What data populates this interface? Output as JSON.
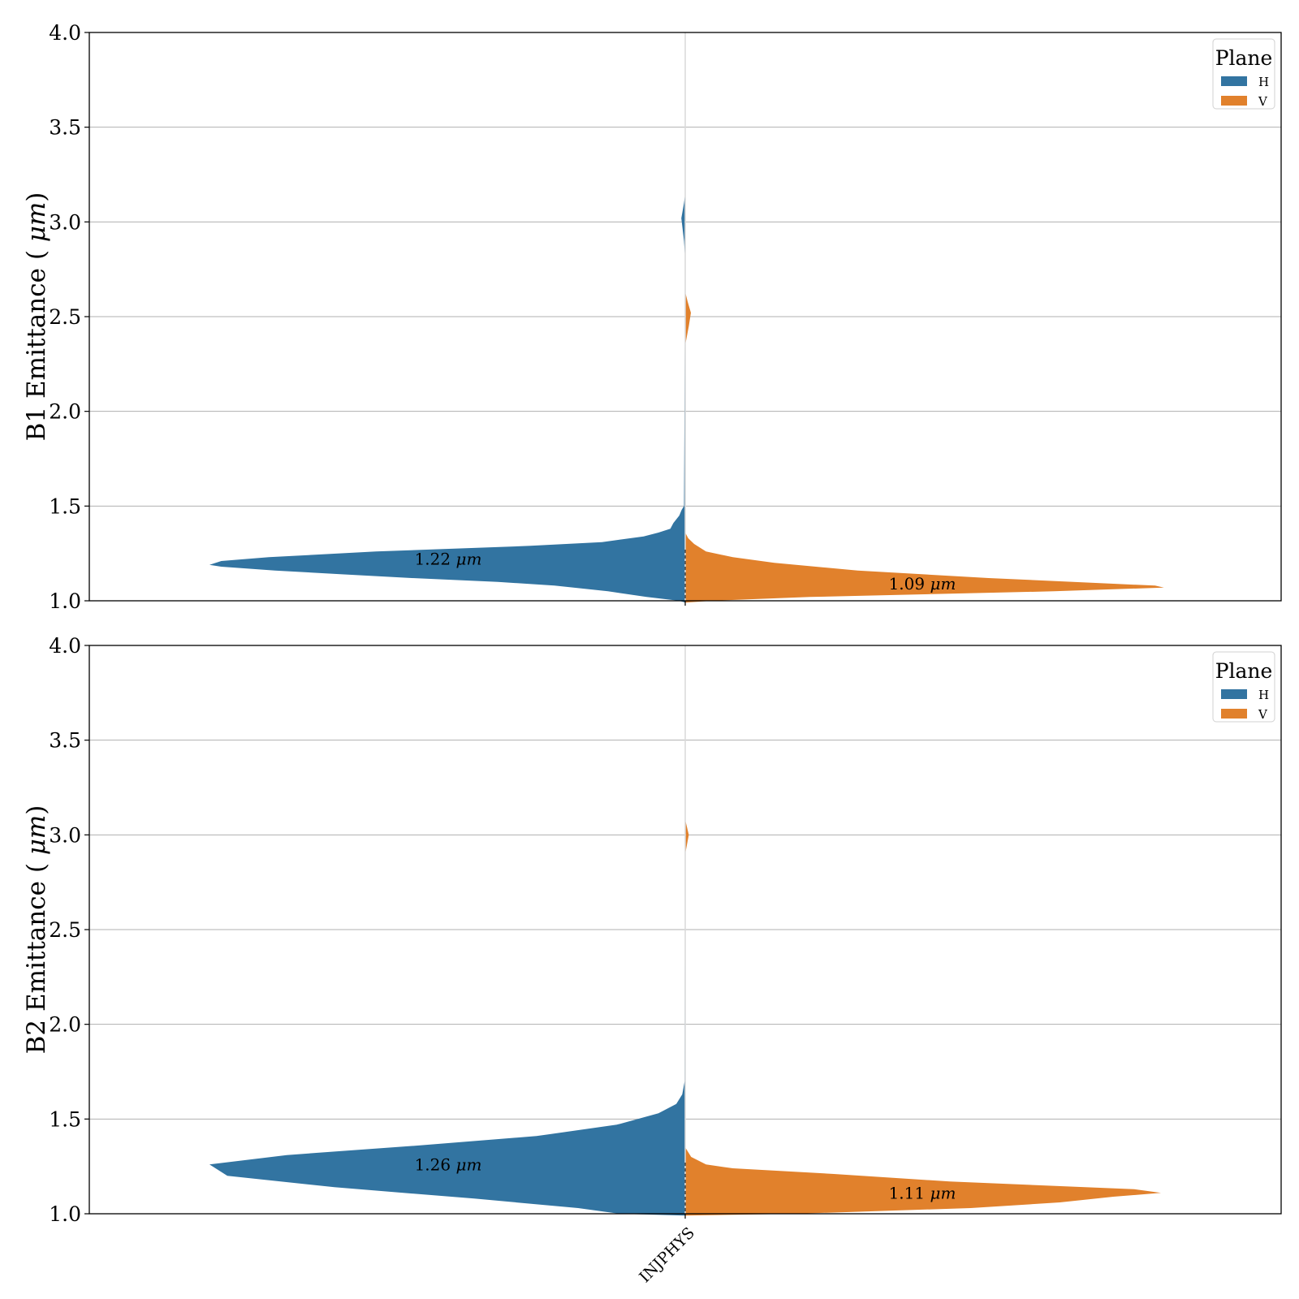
{
  "chart_data": [
    {
      "type": "violin",
      "split": true,
      "ylabel": "B1 Emittance (μm)",
      "ylim": [
        1.0,
        4.0
      ],
      "yticks": [
        "1.0",
        "1.5",
        "2.0",
        "2.5",
        "3.0",
        "3.5",
        "4.0"
      ],
      "category": "",
      "grid": "y",
      "legend": {
        "title": "Plane",
        "placement": "top-right",
        "entries": [
          "H",
          "V"
        ]
      },
      "series": [
        {
          "name": "H",
          "color": "#3274a1",
          "median_label": "1.22 μm",
          "median": 1.22,
          "density": [
            [
              0.99,
              0.0
            ],
            [
              1.0,
              0.02
            ],
            [
              1.02,
              0.13
            ],
            [
              1.05,
              0.26
            ],
            [
              1.08,
              0.44
            ],
            [
              1.1,
              0.63
            ],
            [
              1.12,
              0.92
            ],
            [
              1.14,
              1.16
            ],
            [
              1.16,
              1.38
            ],
            [
              1.18,
              1.56
            ],
            [
              1.19,
              1.6
            ],
            [
              1.21,
              1.56
            ],
            [
              1.23,
              1.4
            ],
            [
              1.26,
              1.04
            ],
            [
              1.29,
              0.52
            ],
            [
              1.31,
              0.28
            ],
            [
              1.34,
              0.14
            ],
            [
              1.36,
              0.09
            ],
            [
              1.38,
              0.05
            ],
            [
              1.41,
              0.04
            ],
            [
              1.45,
              0.02
            ],
            [
              1.48,
              0.012
            ],
            [
              1.5,
              0.004
            ],
            [
              2.8,
              0.0
            ],
            [
              2.9,
              0.004
            ],
            [
              3.02,
              0.013
            ],
            [
              3.1,
              0.004
            ],
            [
              3.15,
              0.0
            ]
          ]
        },
        {
          "name": "V",
          "color": "#e1812c",
          "median_label": "1.09 μm",
          "median": 1.09,
          "density": [
            [
              0.99,
              0.0
            ],
            [
              1.0,
              0.09
            ],
            [
              1.02,
              0.42
            ],
            [
              1.05,
              1.24
            ],
            [
              1.07,
              1.61
            ],
            [
              1.08,
              1.58
            ],
            [
              1.09,
              1.44
            ],
            [
              1.12,
              1.02
            ],
            [
              1.16,
              0.58
            ],
            [
              1.2,
              0.3
            ],
            [
              1.23,
              0.16
            ],
            [
              1.26,
              0.07
            ],
            [
              1.3,
              0.03
            ],
            [
              1.33,
              0.01
            ],
            [
              1.36,
              0.0
            ],
            [
              2.35,
              0.0
            ],
            [
              2.45,
              0.012
            ],
            [
              2.52,
              0.019
            ],
            [
              2.58,
              0.008
            ],
            [
              2.63,
              0.0
            ]
          ]
        }
      ]
    },
    {
      "type": "violin",
      "split": true,
      "ylabel": "B2 Emittance (μm)",
      "ylim": [
        1.0,
        4.0
      ],
      "yticks": [
        "1.0",
        "1.5",
        "2.0",
        "2.5",
        "3.0",
        "3.5",
        "4.0"
      ],
      "category": "INJPHYS",
      "grid": "y",
      "legend": {
        "title": "Plane",
        "placement": "top-right",
        "entries": [
          "H",
          "V"
        ]
      },
      "series": [
        {
          "name": "H",
          "color": "#3274a1",
          "median_label": "1.26 μm",
          "median": 1.26,
          "density": [
            [
              0.99,
              0.0
            ],
            [
              1.0,
              0.22
            ],
            [
              1.03,
              0.36
            ],
            [
              1.08,
              0.71
            ],
            [
              1.14,
              1.18
            ],
            [
              1.2,
              1.54
            ],
            [
              1.26,
              1.6
            ],
            [
              1.31,
              1.34
            ],
            [
              1.36,
              0.9
            ],
            [
              1.41,
              0.5
            ],
            [
              1.47,
              0.23
            ],
            [
              1.53,
              0.09
            ],
            [
              1.58,
              0.03
            ],
            [
              1.63,
              0.01
            ],
            [
              1.7,
              0.002
            ],
            [
              4.0,
              0.0
            ]
          ]
        },
        {
          "name": "V",
          "color": "#e1812c",
          "median_label": "1.11 μm",
          "median": 1.11,
          "density": [
            [
              0.99,
              0.0
            ],
            [
              1.0,
              0.37
            ],
            [
              1.03,
              0.96
            ],
            [
              1.06,
              1.26
            ],
            [
              1.09,
              1.44
            ],
            [
              1.11,
              1.6
            ],
            [
              1.13,
              1.51
            ],
            [
              1.17,
              0.89
            ],
            [
              1.21,
              0.5
            ],
            [
              1.24,
              0.16
            ],
            [
              1.26,
              0.07
            ],
            [
              1.3,
              0.02
            ],
            [
              1.35,
              0.0
            ],
            [
              2.9,
              0.0
            ],
            [
              3.0,
              0.012
            ],
            [
              3.08,
              0.0
            ]
          ]
        }
      ]
    }
  ]
}
